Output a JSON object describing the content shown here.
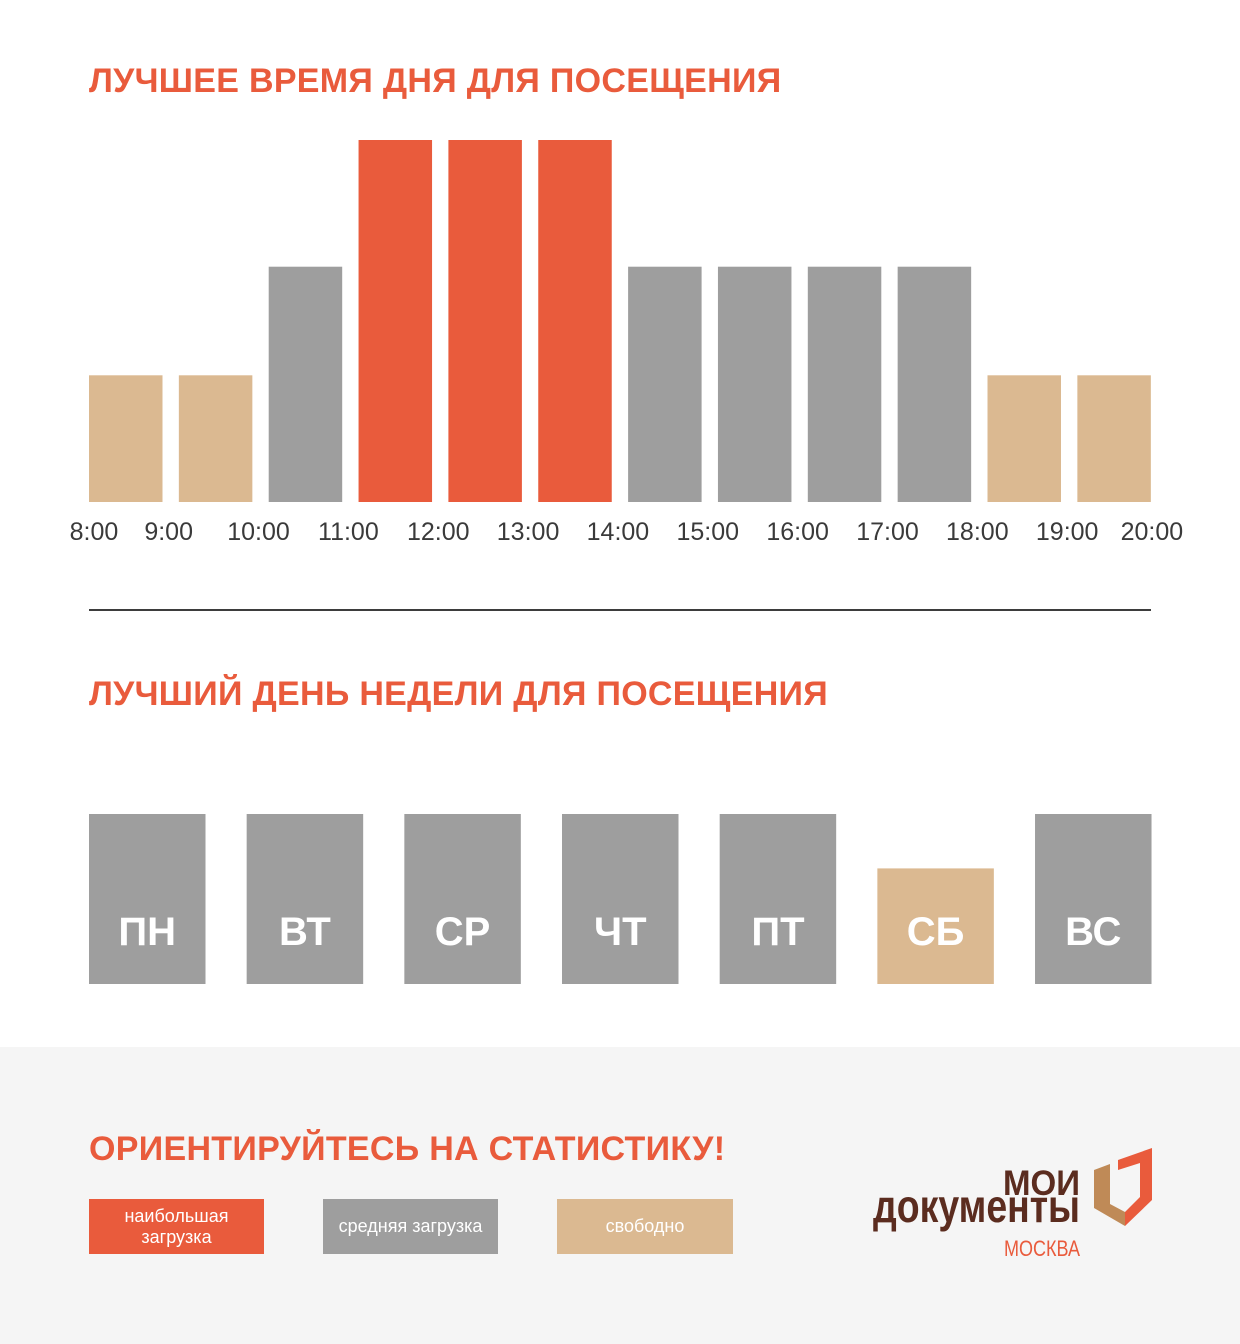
{
  "palette": {
    "accent": "#e95b3c",
    "medium": "#9e9e9e",
    "free": "#dbb991",
    "text": "#333333",
    "panel": "#f5f5f5",
    "brand_brown": "#5b2c1f",
    "emblem_brown": "#bf8a57"
  },
  "chart_data": [
    {
      "type": "bar",
      "title": "ЛУЧШЕЕ ВРЕМЯ ДНЯ ДЛЯ ПОСЕЩЕНИЯ",
      "x_ticks": [
        "8:00",
        "9:00",
        "10:00",
        "11:00",
        "12:00",
        "13:00",
        "14:00",
        "15:00",
        "16:00",
        "17:00",
        "18:00",
        "19:00",
        "20:00"
      ],
      "values": [
        0.35,
        0.35,
        0.65,
        1,
        1,
        1,
        0.65,
        0.65,
        0.65,
        0.65,
        0.35,
        0.35
      ],
      "bar_colors": [
        "#dbb991",
        "#dbb991",
        "#9e9e9e",
        "#e95b3c",
        "#e95b3c",
        "#e95b3c",
        "#9e9e9e",
        "#9e9e9e",
        "#9e9e9e",
        "#9e9e9e",
        "#dbb991",
        "#dbb991"
      ],
      "ylim": [
        0,
        1
      ],
      "grid": false,
      "legend": "bottom"
    },
    {
      "type": "bar",
      "title": "ЛУЧШИЙ ДЕНЬ НЕДЕЛИ ДЛЯ ПОСЕЩЕНИЯ",
      "categories": [
        "ПН",
        "ВТ",
        "СР",
        "ЧТ",
        "ПТ",
        "СБ",
        "ВС"
      ],
      "values": [
        1,
        1,
        1,
        1,
        1,
        0.68,
        1
      ],
      "bar_colors": [
        "#9e9e9e",
        "#9e9e9e",
        "#9e9e9e",
        "#9e9e9e",
        "#9e9e9e",
        "#dbb991",
        "#9e9e9e"
      ],
      "ylim": [
        0,
        1
      ],
      "grid": false,
      "legend": "bottom"
    }
  ],
  "footer": {
    "heading": "ОРИЕНТИРУЙТЕСЬ НА СТАТИСТИКУ!",
    "legend": [
      {
        "label": "наибольшая загрузка",
        "color": "#e95b3c"
      },
      {
        "label": "средняя загрузка",
        "color": "#9e9e9e"
      },
      {
        "label": "свободно",
        "color": "#dbb991"
      }
    ],
    "logo": {
      "line1": "МОИ",
      "line2": "документы",
      "city": "МОСКВА"
    }
  }
}
